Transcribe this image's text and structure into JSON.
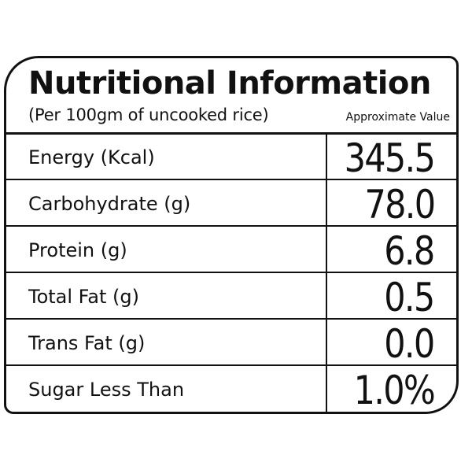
{
  "label": {
    "title": "Nutritional Information",
    "subtitle": "(Per 100gm of uncooked rice)",
    "approx_note": "Approximate Value",
    "rows": [
      {
        "name": "Energy (Kcal)",
        "value": "345.5"
      },
      {
        "name": "Carbohydrate (g)",
        "value": "78.0"
      },
      {
        "name": "Protein (g)",
        "value": "6.8"
      },
      {
        "name": "Total Fat (g)",
        "value": "0.5"
      },
      {
        "name": "Trans Fat (g)",
        "value": "0.0"
      },
      {
        "name": "Sugar Less Than",
        "value": "1.0%"
      }
    ]
  },
  "colors": {
    "ink": "#111111",
    "background": "#ffffff"
  }
}
